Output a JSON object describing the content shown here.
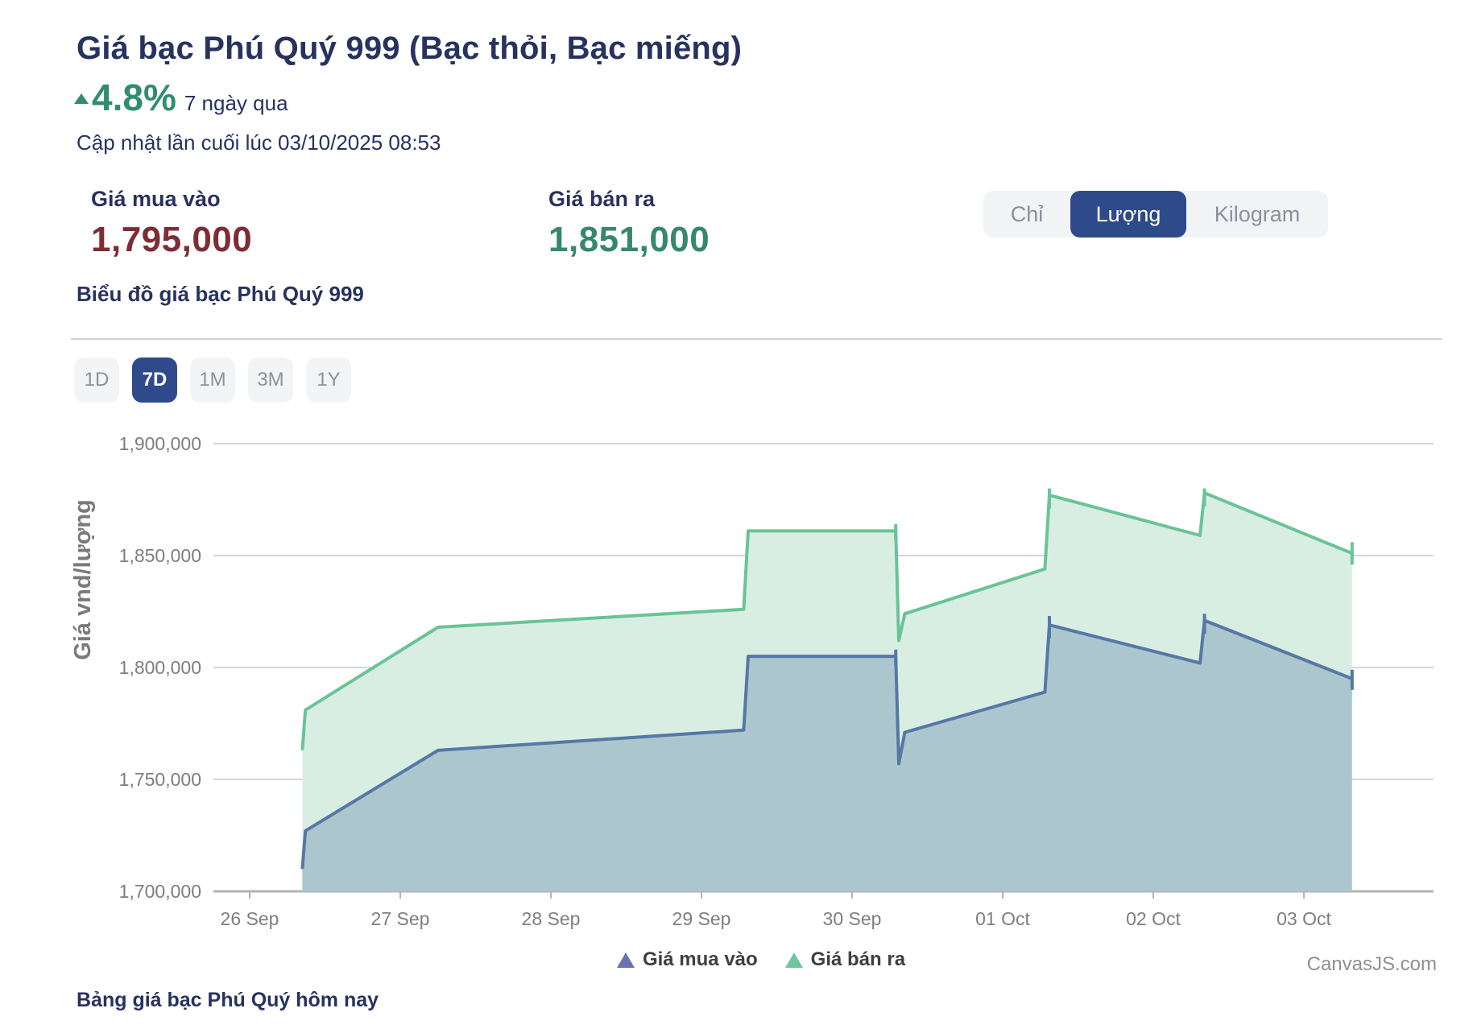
{
  "header": {
    "title": "Giá bạc Phú Quý 999 (Bạc thỏi, Bạc miếng)",
    "change_pct": "4.8%",
    "change_period": "7 ngày qua",
    "last_updated": "Cập nhật lần cuối lúc 03/10/2025 08:53"
  },
  "prices": {
    "buy_label": "Giá mua vào",
    "buy_value": "1,795,000",
    "sell_label": "Giá bán ra",
    "sell_value": "1,851,000"
  },
  "unit_toggle": {
    "options": [
      "Chỉ",
      "Lượng",
      "Kilogram"
    ],
    "selected": "Lượng"
  },
  "chart_section": {
    "title": "Biểu đồ giá bạc Phú Quý 999"
  },
  "range_buttons": {
    "options": [
      "1D",
      "7D",
      "1M",
      "3M",
      "1Y"
    ],
    "selected": "7D"
  },
  "chart_data": {
    "type": "area",
    "title": "Biểu đồ giá bạc Phú Quý 999",
    "x_unit": "days since 26 Sep 2025 (fractional = intraday time)",
    "xlim": [
      -0.24,
      7.86
    ],
    "ylim": [
      1700000,
      1913000
    ],
    "grid": "horizontal only",
    "legend_position": "bottom-center",
    "y_axis": {
      "title": "Giá vnd/lượng",
      "ticks": [
        {
          "label": "1,700,000",
          "value": 1700000
        },
        {
          "label": "1,750,000",
          "value": 1750000
        },
        {
          "label": "1,800,000",
          "value": 1800000
        },
        {
          "label": "1,850,000",
          "value": 1850000
        },
        {
          "label": "1,900,000",
          "value": 1900000
        }
      ]
    },
    "x_axis": {
      "ticks": [
        "26 Sep",
        "27 Sep",
        "28 Sep",
        "29 Sep",
        "30 Sep",
        "01 Oct",
        "02 Oct",
        "03 Oct"
      ]
    },
    "series": [
      {
        "name": "Giá bán ra",
        "color": "#69c496",
        "fill": "#d9eee3",
        "points": [
          [
            0.35,
            1763000
          ],
          [
            0.37,
            1781000
          ],
          [
            1.25,
            1818000
          ],
          [
            3.28,
            1826000
          ],
          [
            3.31,
            1861000
          ],
          [
            4.29,
            1861000
          ],
          [
            4.31,
            1812000
          ],
          [
            4.35,
            1824000
          ],
          [
            5.28,
            1844000
          ],
          [
            5.31,
            1877000
          ],
          [
            6.31,
            1859000
          ],
          [
            6.34,
            1878000
          ],
          [
            7.32,
            1851000
          ]
        ]
      },
      {
        "name": "Giá mua vào",
        "color": "#5578a6",
        "fill": "rgba(85,120,166,0.34)",
        "points": [
          [
            0.35,
            1710000
          ],
          [
            0.37,
            1727000
          ],
          [
            1.25,
            1763000
          ],
          [
            3.28,
            1772000
          ],
          [
            3.31,
            1805000
          ],
          [
            4.29,
            1805000
          ],
          [
            4.31,
            1757000
          ],
          [
            4.35,
            1771000
          ],
          [
            5.28,
            1789000
          ],
          [
            5.31,
            1819000
          ],
          [
            6.31,
            1802000
          ],
          [
            6.34,
            1821000
          ],
          [
            7.32,
            1795000
          ]
        ]
      }
    ],
    "caps": [
      {
        "series": 0,
        "x": 4.29,
        "from": 1857000,
        "to": 1864000
      },
      {
        "series": 0,
        "x": 5.31,
        "from": 1871000,
        "to": 1880000
      },
      {
        "series": 0,
        "x": 6.34,
        "from": 1872000,
        "to": 1880000
      },
      {
        "series": 0,
        "x": 7.32,
        "from": 1846000,
        "to": 1856000
      },
      {
        "series": 1,
        "x": 4.29,
        "from": 1801000,
        "to": 1808000
      },
      {
        "series": 1,
        "x": 5.31,
        "from": 1813000,
        "to": 1823000
      },
      {
        "series": 1,
        "x": 6.34,
        "from": 1815000,
        "to": 1824000
      },
      {
        "series": 1,
        "x": 7.32,
        "from": 1790000,
        "to": 1799000
      }
    ]
  },
  "legend": [
    {
      "label": "Giá mua vào",
      "color": "#6a73b1"
    },
    {
      "label": "Giá bán ra",
      "color": "#6ec79a"
    }
  ],
  "footer": {
    "link": "Bảng giá bạc Phú Quý hôm nay",
    "credit": "CanvasJS.com"
  },
  "colors": {
    "navy_text": "#27325f",
    "positive_green": "#2f8e6b",
    "buy_value_red": "#7d2d34",
    "sell_value_green": "#37886b",
    "selected_accent": "#2e4a8b",
    "sell_line": "#69c496",
    "buy_line": "#5578a6",
    "gridline": "#c7c7c7",
    "axis_text": "#7e7e7e"
  }
}
